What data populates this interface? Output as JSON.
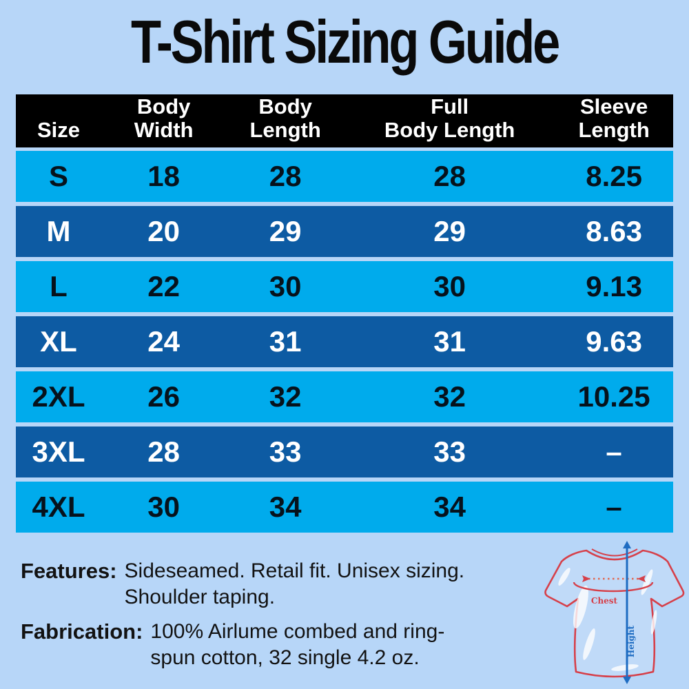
{
  "title": "T-Shirt Sizing Guide",
  "table": {
    "headers": [
      {
        "label": "Size",
        "lines": [
          "Size"
        ]
      },
      {
        "label": "Body Width",
        "lines": [
          "Body",
          "Width"
        ]
      },
      {
        "label": "Body Length",
        "lines": [
          "Body",
          "Length"
        ]
      },
      {
        "label": "Full Body Length",
        "lines": [
          "Full",
          "Body Length"
        ]
      },
      {
        "label": "Sleeve Length",
        "lines": [
          "Sleeve",
          "Length"
        ]
      }
    ],
    "rows": [
      [
        "S",
        "18",
        "28",
        "28",
        "8.25"
      ],
      [
        "M",
        "20",
        "29",
        "29",
        "8.63"
      ],
      [
        "L",
        "22",
        "30",
        "30",
        "9.13"
      ],
      [
        "XL",
        "24",
        "31",
        "31",
        "9.63"
      ],
      [
        "2XL",
        "26",
        "32",
        "32",
        "10.25"
      ],
      [
        "3XL",
        "28",
        "33",
        "33",
        "–"
      ],
      [
        "4XL",
        "30",
        "34",
        "34",
        "–"
      ]
    ]
  },
  "chart_data": {
    "type": "table",
    "title": "T-Shirt Sizing Guide",
    "columns": [
      "Size",
      "Body Width",
      "Body Length",
      "Full Body Length",
      "Sleeve Length"
    ],
    "rows": [
      {
        "size": "S",
        "body_width": 18,
        "body_length": 28,
        "full_body_length": 28,
        "sleeve_length": 8.25
      },
      {
        "size": "M",
        "body_width": 20,
        "body_length": 29,
        "full_body_length": 29,
        "sleeve_length": 8.63
      },
      {
        "size": "L",
        "body_width": 22,
        "body_length": 30,
        "full_body_length": 30,
        "sleeve_length": 9.13
      },
      {
        "size": "XL",
        "body_width": 24,
        "body_length": 31,
        "full_body_length": 31,
        "sleeve_length": 9.63
      },
      {
        "size": "2XL",
        "body_width": 26,
        "body_length": 32,
        "full_body_length": 32,
        "sleeve_length": 10.25
      },
      {
        "size": "3XL",
        "body_width": 28,
        "body_length": 33,
        "full_body_length": 33,
        "sleeve_length": null
      },
      {
        "size": "4XL",
        "body_width": 30,
        "body_length": 34,
        "full_body_length": 34,
        "sleeve_length": null
      }
    ],
    "layout_hints": {
      "row_style": "alternating light cyan / dark blue",
      "header": "black with white text"
    }
  },
  "notes": {
    "features_label": "Features:",
    "features_line1": "Sideseamed. Retail fit. Unisex sizing.",
    "features_line2": "Shoulder taping.",
    "fabrication_label": "Fabrication:",
    "fabrication_line1": "100% Airlume combed and ring-",
    "fabrication_line2": "spun cotton, 32 single 4.2 oz."
  },
  "diagram": {
    "chest_label": "Chest",
    "height_label": "Height"
  },
  "colors": {
    "background": "#b7d6f8",
    "row_light": "#00abec",
    "row_dark": "#0d5ba3",
    "header_bg": "#000000",
    "header_text": "#ffffff",
    "shirt_red": "#d6404a",
    "measure_blue": "#1e6cc2"
  }
}
